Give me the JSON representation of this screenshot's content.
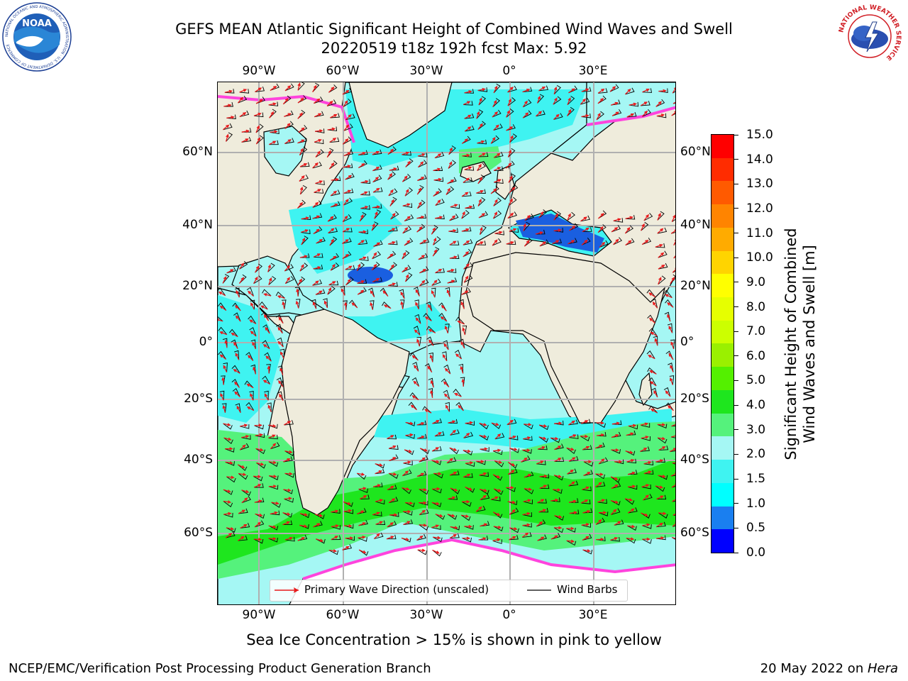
{
  "header": {
    "title_line1": "GEFS MEAN Atlantic Significant Height of Combined Wind Waves and Swell",
    "title_line2": "20220519 t18z 192h fcst   Max: 5.92"
  },
  "logos": {
    "left": "NOAA",
    "left_ring": "NATIONAL OCEANIC AND ATMOSPHERIC ADMINISTRATION · U.S. DEPARTMENT OF COMMERCE",
    "right_ring": "NATIONAL WEATHER SERVICE"
  },
  "map": {
    "lon_ticks": [
      "90°W",
      "60°W",
      "30°W",
      "0°",
      "30°E"
    ],
    "lat_ticks_left": [
      "60°N",
      "40°N",
      "20°N",
      "0°",
      "20°S",
      "40°S",
      "60°S"
    ],
    "lat_ticks_right": [
      "60°N",
      "40°N",
      "20°N",
      "0°",
      "20°S",
      "40°S",
      "60°S"
    ],
    "colors": {
      "land": "#efecdc",
      "water_light": "#a5f7f4",
      "water_cyan": "#3ff3f1",
      "grid": "#b0b0b0",
      "green_light": "#55f27c",
      "green": "#1ee61e",
      "blue": "#1a5fe0",
      "barbs": "#000000",
      "wave_arrows": "#e8191b",
      "sea_ice": "#ff44dd"
    }
  },
  "legend": {
    "wave_direction": "Primary Wave Direction (unscaled)",
    "wind_barbs": "Wind Barbs"
  },
  "colorbar": {
    "label_line1": "Significant Height of Combined",
    "label_line2": "Wind Waves and Swell [m]",
    "ticks": [
      "15.0",
      "14.0",
      "13.0",
      "12.0",
      "11.0",
      "10.0",
      "9.0",
      "8.0",
      "7.0",
      "6.0",
      "5.0",
      "4.0",
      "3.0",
      "2.0",
      "1.5",
      "1.0",
      "0.5",
      "0.0"
    ],
    "bins": [
      "#ff0000",
      "#ff2c00",
      "#ff5a00",
      "#ff8400",
      "#ffab00",
      "#ffd400",
      "#ffff00",
      "#e6ff00",
      "#ccff00",
      "#9af000",
      "#54f000",
      "#1ee61e",
      "#55f27c",
      "#a5f7f4",
      "#3ff3f1",
      "#00ffff",
      "#1a7ff0",
      "#0000ff"
    ]
  },
  "footer": {
    "subcaption": "Sea Ice Concentration > 15% is shown in pink to yellow",
    "left": "NCEP/EMC/Verification Post Processing Product Generation Branch",
    "right_prefix": "20 May 2022 on ",
    "right_host": "Hera"
  }
}
